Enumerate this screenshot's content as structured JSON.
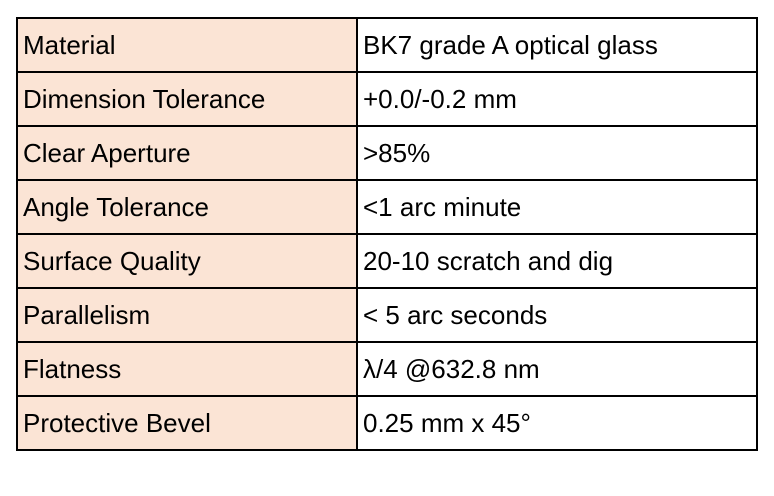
{
  "colors": {
    "label_background": "#fbe4d5",
    "value_background": "#ffffff",
    "border": "#000000"
  },
  "specs": [
    {
      "label": "Material",
      "value": "BK7 grade A optical glass"
    },
    {
      "label": "Dimension Tolerance",
      "value": "+0.0/-0.2 mm"
    },
    {
      "label": "Clear Aperture",
      "value": ">85%"
    },
    {
      "label": "Angle Tolerance",
      "value": "<1 arc minute"
    },
    {
      "label": "Surface Quality",
      "value": "20-10 scratch and dig"
    },
    {
      "label": "Parallelism",
      "value": "< 5 arc seconds"
    },
    {
      "label": "Flatness",
      "value": "λ/4 @632.8 nm"
    },
    {
      "label": "Protective Bevel",
      "value": "0.25 mm x 45°"
    }
  ]
}
